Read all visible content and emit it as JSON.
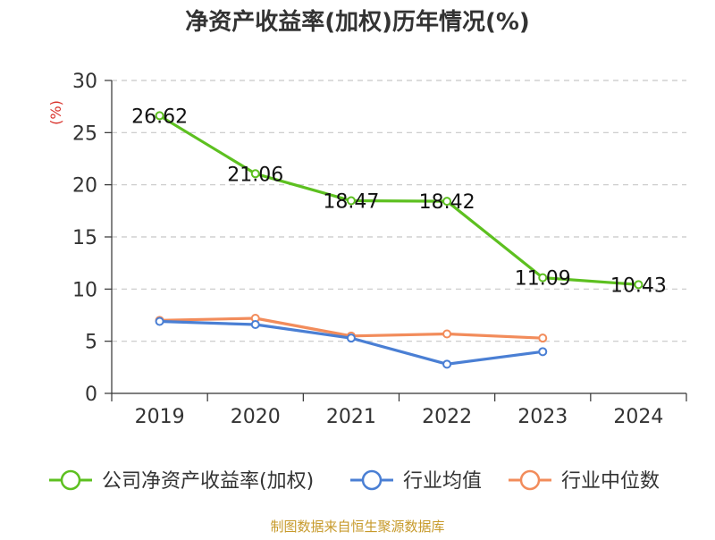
{
  "title": "净资产收益率(加权)历年情况(%)",
  "source": "制图数据来自恒生聚源数据库",
  "chart_data": {
    "type": "line",
    "title": "净资产收益率(加权)历年情况(%)",
    "ylabel": "(%)",
    "ylim": [
      0,
      30
    ],
    "yticks": [
      0,
      5,
      10,
      15,
      20,
      25,
      30
    ],
    "grid": true,
    "legend_position": "bottom",
    "categories": [
      "2019",
      "2020",
      "2021",
      "2022",
      "2023",
      "2024"
    ],
    "series": [
      {
        "name": "公司净资产收益率(加权)",
        "color": "#5dc020",
        "values": [
          26.62,
          21.06,
          18.47,
          18.42,
          11.09,
          10.43
        ],
        "labels": [
          "26.62",
          "21.06",
          "18.47",
          "18.42",
          "11.09",
          "10.43"
        ]
      },
      {
        "name": "行业均值",
        "color": "#4a7fd4",
        "values": [
          6.9,
          6.6,
          5.3,
          2.8,
          4.0,
          null
        ],
        "labels": []
      },
      {
        "name": "行业中位数",
        "color": "#f28c5b",
        "values": [
          7.0,
          7.2,
          5.5,
          5.7,
          5.3,
          null
        ],
        "labels": []
      }
    ]
  }
}
